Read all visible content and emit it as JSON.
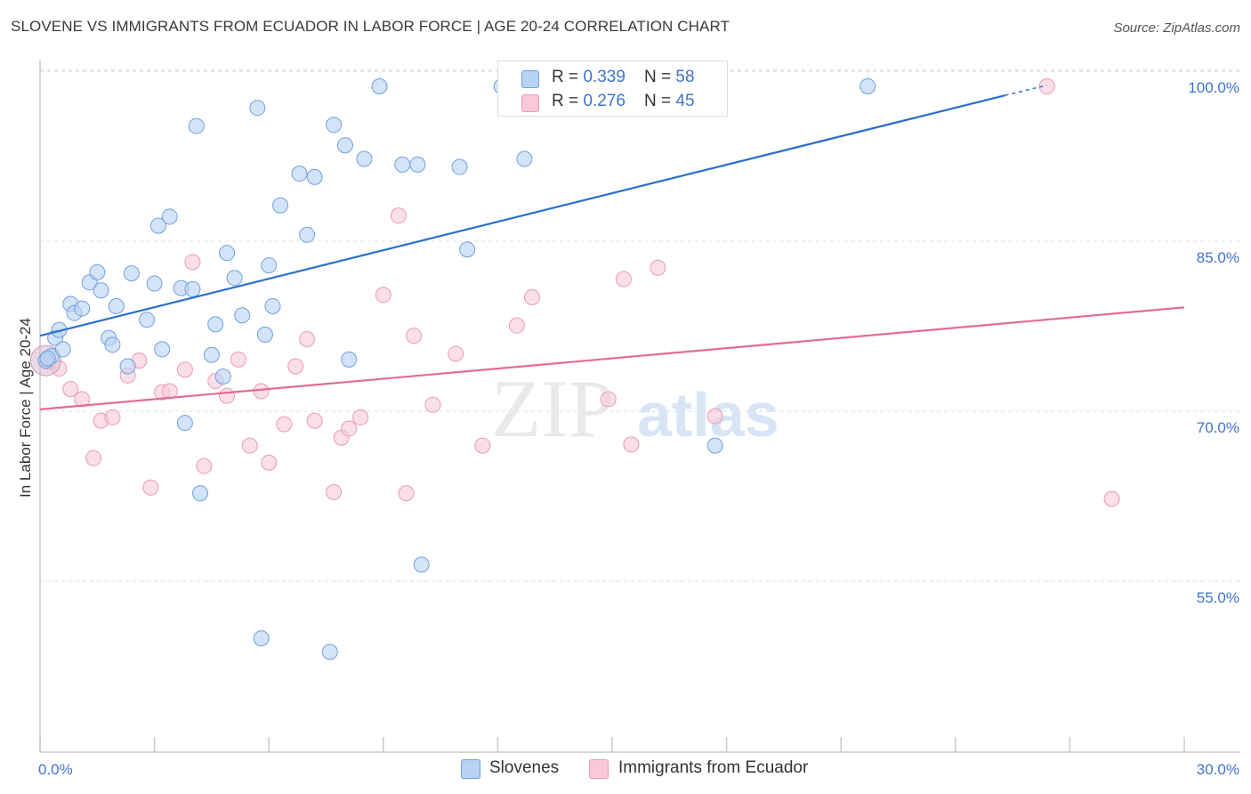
{
  "title": "SLOVENE VS IMMIGRANTS FROM ECUADOR IN LABOR FORCE | AGE 20-24 CORRELATION CHART",
  "source": "Source: ZipAtlas.com",
  "watermark": {
    "zip": "ZIP",
    "atlas": "atlas"
  },
  "colors": {
    "blue_fill": "#b7d2f3",
    "blue_stroke": "#6fa0dc",
    "blue_line": "#2a6fcb",
    "pink_fill": "#f9c9d8",
    "pink_stroke": "#e99ab5",
    "pink_line": "#e26b95",
    "tick_text": "#3f74c9",
    "grid": "#dcdcdc"
  },
  "legend_top": [
    {
      "r_label": "R = ",
      "r_value": "0.339",
      "n_label": "N = ",
      "n_value": "58",
      "color": "#b7d2f3",
      "border": "#6fa0dc"
    },
    {
      "r_label": "R = ",
      "r_value": "0.276",
      "n_label": "N = ",
      "n_value": "45",
      "color": "#f9c9d8",
      "border": "#e99ab5"
    }
  ],
  "legend_bottom": [
    {
      "label": "Slovenes",
      "color": "#b7d2f3",
      "border": "#6fa0dc"
    },
    {
      "label": "Immigrants from Ecuador",
      "color": "#f9c9d8",
      "border": "#e99ab5"
    }
  ],
  "chart_data": {
    "type": "scatter",
    "title": "SLOVENE VS IMMIGRANTS FROM ECUADOR IN LABOR FORCE | AGE 20-24 CORRELATION CHART",
    "xlabel": "",
    "ylabel": "In Labor Force | Age 20-24",
    "xlim": [
      0,
      30
    ],
    "ylim": [
      40,
      102
    ],
    "x_tick_labels": [
      "0.0%",
      "30.0%"
    ],
    "y_ticks": [
      55,
      70,
      85,
      100
    ],
    "y_tick_labels": [
      "55.0%",
      "70.0%",
      "85.0%",
      "100.0%"
    ],
    "grid": true,
    "legend_position": "top-center",
    "series": [
      {
        "name": "Slovenes",
        "r": 0.339,
        "n": 58,
        "trend": {
          "x0": 0,
          "y0": 78.0,
          "x1": 25.3,
          "y1": 99.2,
          "dashed_to_x": 26.4,
          "dashed_to_y": 100.1
        },
        "points": [
          [
            0.3,
            76.2
          ],
          [
            0.4,
            77.8
          ],
          [
            0.5,
            78.5
          ],
          [
            0.6,
            76.8
          ],
          [
            0.8,
            80.8
          ],
          [
            0.9,
            80.0
          ],
          [
            1.1,
            80.4
          ],
          [
            1.3,
            82.7
          ],
          [
            1.5,
            83.6
          ],
          [
            1.6,
            82.0
          ],
          [
            1.8,
            77.8
          ],
          [
            1.9,
            77.2
          ],
          [
            2.0,
            80.6
          ],
          [
            2.3,
            75.3
          ],
          [
            2.4,
            83.5
          ],
          [
            2.8,
            79.4
          ],
          [
            3.0,
            82.6
          ],
          [
            3.1,
            87.7
          ],
          [
            3.2,
            76.8
          ],
          [
            3.4,
            88.5
          ],
          [
            3.7,
            82.2
          ],
          [
            3.8,
            70.3
          ],
          [
            4.0,
            82.1
          ],
          [
            4.1,
            96.5
          ],
          [
            4.2,
            64.1
          ],
          [
            4.5,
            76.3
          ],
          [
            4.6,
            79.0
          ],
          [
            4.8,
            74.4
          ],
          [
            4.9,
            85.3
          ],
          [
            5.1,
            83.1
          ],
          [
            5.3,
            79.8
          ],
          [
            5.7,
            98.1
          ],
          [
            5.8,
            51.3
          ],
          [
            5.9,
            78.1
          ],
          [
            6.0,
            84.2
          ],
          [
            6.1,
            80.6
          ],
          [
            6.3,
            89.5
          ],
          [
            6.8,
            92.3
          ],
          [
            7.0,
            86.9
          ],
          [
            7.2,
            92.0
          ],
          [
            7.6,
            50.1
          ],
          [
            7.7,
            96.6
          ],
          [
            8.0,
            94.8
          ],
          [
            8.1,
            75.9
          ],
          [
            8.5,
            93.6
          ],
          [
            8.9,
            100.0
          ],
          [
            9.5,
            93.1
          ],
          [
            9.9,
            93.1
          ],
          [
            10.0,
            57.8
          ],
          [
            11.0,
            92.9
          ],
          [
            11.2,
            85.6
          ],
          [
            12.1,
            100.0
          ],
          [
            12.7,
            93.6
          ],
          [
            15.5,
            100.0
          ],
          [
            17.7,
            68.3
          ],
          [
            21.7,
            100.0
          ],
          [
            0.15,
            75.8
          ],
          [
            0.2,
            76.0
          ]
        ]
      },
      {
        "name": "Immigrants from Ecuador",
        "r": 0.276,
        "n": 45,
        "trend": {
          "x0": 0,
          "y0": 71.5,
          "x1": 30,
          "y1": 80.5
        },
        "points": [
          [
            0.2,
            75.7
          ],
          [
            0.5,
            75.1
          ],
          [
            0.8,
            73.3
          ],
          [
            1.1,
            72.4
          ],
          [
            1.4,
            67.2
          ],
          [
            1.6,
            70.5
          ],
          [
            1.9,
            70.8
          ],
          [
            2.3,
            74.5
          ],
          [
            2.6,
            75.8
          ],
          [
            2.9,
            64.6
          ],
          [
            3.2,
            73.0
          ],
          [
            3.4,
            73.1
          ],
          [
            3.8,
            75.0
          ],
          [
            4.0,
            84.5
          ],
          [
            4.3,
            66.5
          ],
          [
            4.6,
            74.0
          ],
          [
            4.9,
            72.7
          ],
          [
            5.2,
            75.9
          ],
          [
            5.5,
            68.3
          ],
          [
            5.8,
            73.1
          ],
          [
            6.0,
            66.8
          ],
          [
            6.4,
            70.2
          ],
          [
            6.7,
            75.3
          ],
          [
            7.0,
            77.7
          ],
          [
            7.2,
            70.5
          ],
          [
            7.7,
            64.2
          ],
          [
            7.9,
            69.0
          ],
          [
            8.1,
            69.8
          ],
          [
            8.4,
            70.8
          ],
          [
            9.0,
            81.6
          ],
          [
            9.4,
            88.6
          ],
          [
            9.6,
            64.1
          ],
          [
            9.8,
            78.0
          ],
          [
            10.3,
            71.9
          ],
          [
            10.9,
            76.4
          ],
          [
            11.6,
            68.3
          ],
          [
            12.5,
            78.9
          ],
          [
            12.9,
            81.4
          ],
          [
            14.9,
            72.4
          ],
          [
            15.3,
            83.0
          ],
          [
            15.5,
            68.4
          ],
          [
            16.2,
            84.0
          ],
          [
            17.7,
            70.9
          ],
          [
            26.4,
            100.0
          ],
          [
            28.1,
            63.6
          ]
        ]
      }
    ]
  }
}
